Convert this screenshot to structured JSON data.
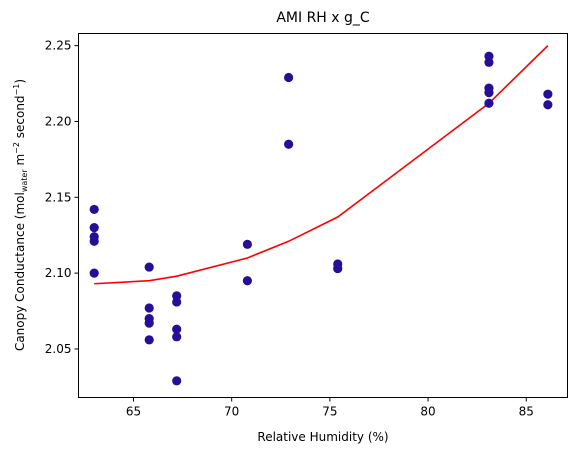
{
  "chart_data": {
    "type": "scatter",
    "title": "AMI RH x g_C",
    "xlabel": "Relative Humidity (%)",
    "ylabel": "Canopy Conductance (mol",
    "ylabel_sub": "water",
    "ylabel_mid": " m",
    "ylabel_sup1": "−2",
    "ylabel_mid2": " second",
    "ylabel_sup2": "−1",
    "ylabel_end": ")",
    "xlim": [
      62.2,
      87.1
    ],
    "ylim": [
      2.018,
      2.258
    ],
    "x_ticks": [
      65,
      70,
      75,
      80,
      85
    ],
    "y_ticks": [
      2.05,
      2.1,
      2.15,
      2.2,
      2.25
    ],
    "colors": {
      "points": "#240f96",
      "fit": "#ff0000"
    },
    "series": [
      {
        "type": "scatter",
        "points": [
          [
            63.0,
            2.142
          ],
          [
            63.0,
            2.13
          ],
          [
            63.0,
            2.124
          ],
          [
            63.0,
            2.121
          ],
          [
            63.0,
            2.1
          ],
          [
            65.8,
            2.104
          ],
          [
            65.8,
            2.077
          ],
          [
            65.8,
            2.07
          ],
          [
            65.8,
            2.067
          ],
          [
            65.8,
            2.056
          ],
          [
            67.2,
            2.085
          ],
          [
            67.2,
            2.081
          ],
          [
            67.2,
            2.063
          ],
          [
            67.2,
            2.058
          ],
          [
            67.2,
            2.029
          ],
          [
            70.8,
            2.119
          ],
          [
            70.8,
            2.095
          ],
          [
            72.9,
            2.229
          ],
          [
            72.9,
            2.185
          ],
          [
            75.4,
            2.106
          ],
          [
            75.4,
            2.103
          ],
          [
            83.1,
            2.243
          ],
          [
            83.1,
            2.239
          ],
          [
            83.1,
            2.222
          ],
          [
            83.1,
            2.219
          ],
          [
            83.1,
            2.212
          ],
          [
            86.1,
            2.218
          ],
          [
            86.1,
            2.211
          ]
        ]
      },
      {
        "type": "line",
        "points": [
          [
            63.0,
            2.093
          ],
          [
            65.8,
            2.095
          ],
          [
            67.2,
            2.098
          ],
          [
            70.8,
            2.11
          ],
          [
            72.9,
            2.121
          ],
          [
            75.4,
            2.137
          ],
          [
            83.1,
            2.212
          ],
          [
            86.1,
            2.25
          ]
        ]
      }
    ]
  }
}
